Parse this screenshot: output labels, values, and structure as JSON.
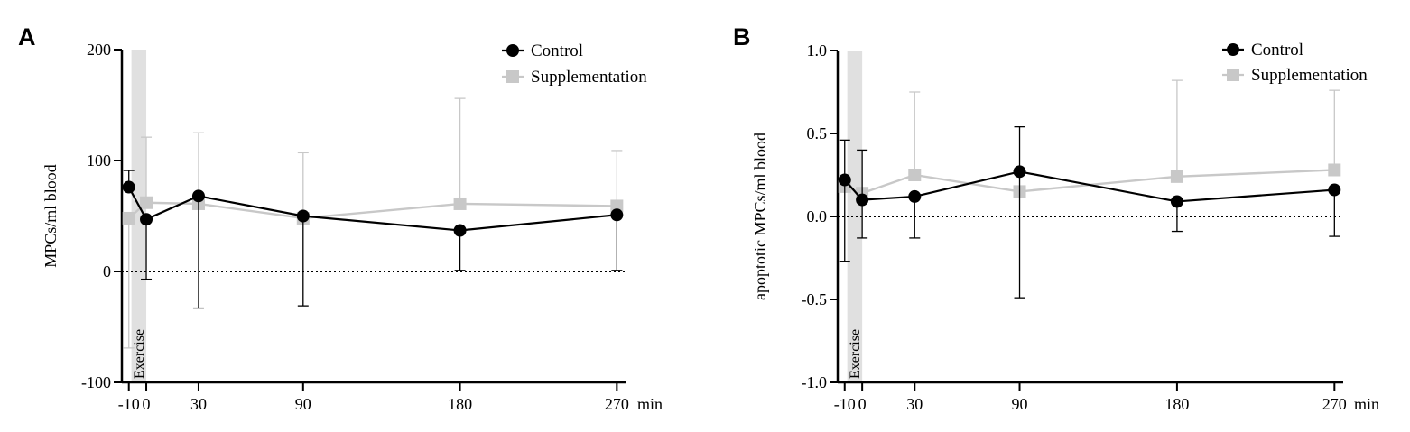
{
  "figure": {
    "colors": {
      "control": "#000000",
      "supplementation": "#c8c8c8",
      "exercise_band": "#e0e0e0",
      "axis": "#000000"
    }
  },
  "chart_data": [
    {
      "type": "line",
      "panel_label": "A",
      "ylabel": "MPCs/ml blood",
      "xlabel": "min",
      "x": [
        -10,
        0,
        30,
        90,
        180,
        270
      ],
      "x_tick_labels": [
        "-10",
        "0",
        "30",
        "90",
        "180",
        "270"
      ],
      "xlim": [
        -14,
        275
      ],
      "ylim": [
        -100,
        200
      ],
      "y_ticks": [
        -100,
        0,
        100,
        200
      ],
      "y_tick_labels": [
        "-100",
        "0",
        "100",
        "200"
      ],
      "reference_line": 0,
      "exercise_band": {
        "x_range": [
          -8.5,
          0
        ],
        "label": "Exercise"
      },
      "legend": {
        "position": "top-right",
        "entries": [
          "Control",
          "Supplementation"
        ]
      },
      "series": [
        {
          "name": "Control",
          "marker": "circle",
          "values": [
            76,
            47,
            68,
            50,
            37,
            51
          ],
          "err_upper": [
            15,
            0,
            0,
            0,
            0,
            0
          ],
          "err_lower": [
            0,
            54,
            101,
            81,
            36,
            50
          ]
        },
        {
          "name": "Supplementation",
          "marker": "square",
          "values": [
            48,
            62,
            61,
            48,
            61,
            59
          ],
          "err_upper": [
            0,
            59,
            64,
            59,
            95,
            50
          ],
          "err_lower": [
            117,
            0,
            0,
            0,
            0,
            0
          ]
        }
      ]
    },
    {
      "type": "line",
      "panel_label": "B",
      "ylabel": "apoptotic MPCs/ml blood",
      "xlabel": "min",
      "x": [
        -10,
        0,
        30,
        90,
        180,
        270
      ],
      "x_tick_labels": [
        "-10",
        "0",
        "30",
        "90",
        "180",
        "270"
      ],
      "xlim": [
        -14,
        275
      ],
      "ylim": [
        -1.0,
        1.0
      ],
      "y_ticks": [
        -1.0,
        -0.5,
        0.0,
        0.5,
        1.0
      ],
      "y_tick_labels": [
        "-1.0",
        "-0.5",
        "0.0",
        "0.5",
        "1.0"
      ],
      "reference_line": 0,
      "exercise_band": {
        "x_range": [
          -8.5,
          0
        ],
        "label": "Exercise"
      },
      "legend": {
        "position": "top-right",
        "entries": [
          "Control",
          "Supplementation"
        ]
      },
      "series": [
        {
          "name": "Control",
          "marker": "circle",
          "values": [
            0.22,
            0.1,
            0.12,
            0.27,
            0.09,
            0.16
          ],
          "err_upper": [
            0.24,
            0.3,
            0,
            0.27,
            0,
            0
          ],
          "err_lower": [
            0.49,
            0.23,
            0.25,
            0.76,
            0.18,
            0.28
          ]
        },
        {
          "name": "Supplementation",
          "marker": "square",
          "values": [
            0.18,
            0.14,
            0.25,
            0.15,
            0.24,
            0.28
          ],
          "err_upper": [
            0,
            0,
            0.5,
            0,
            0.58,
            0.48
          ],
          "err_lower": [
            0,
            0,
            0,
            0,
            0,
            0
          ]
        }
      ]
    }
  ]
}
